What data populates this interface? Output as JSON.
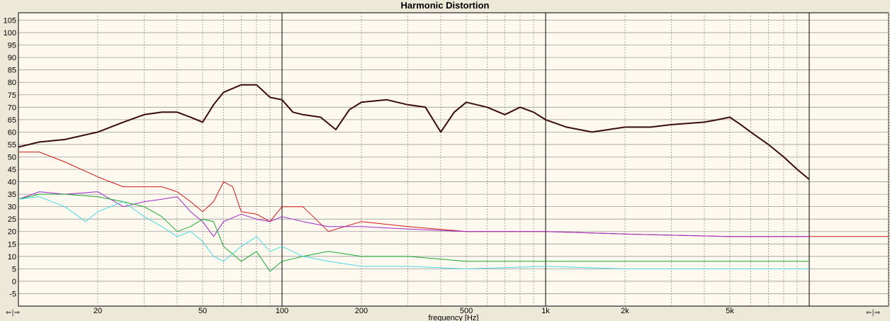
{
  "chart_data": {
    "type": "line",
    "title": "Harmonic Distortion",
    "xlabel": "frequency [Hz]",
    "ylabel": "",
    "x_scale": "log",
    "xlim": [
      10,
      20000
    ],
    "ylim": [
      -10,
      108
    ],
    "y_ticks": [
      105,
      100,
      95,
      90,
      85,
      80,
      75,
      70,
      65,
      60,
      55,
      50,
      45,
      40,
      35,
      30,
      25,
      20,
      15,
      10,
      5,
      0,
      -5
    ],
    "x_ticks": [
      {
        "value": 20,
        "label": "20"
      },
      {
        "value": 50,
        "label": "50"
      },
      {
        "value": 100,
        "label": "100"
      },
      {
        "value": 200,
        "label": "200"
      },
      {
        "value": 500,
        "label": "500"
      },
      {
        "value": 1000,
        "label": "1k"
      },
      {
        "value": 2000,
        "label": "2k"
      },
      {
        "value": 5000,
        "label": "5k"
      }
    ],
    "grid": true,
    "series": [
      {
        "color": "#3a0c0c",
        "width": 2,
        "x": [
          10,
          12,
          15,
          20,
          25,
          30,
          35,
          40,
          45,
          50,
          55,
          60,
          70,
          80,
          90,
          100,
          110,
          120,
          140,
          160,
          180,
          200,
          250,
          300,
          350,
          400,
          450,
          500,
          600,
          700,
          800,
          900,
          1000,
          1200,
          1500,
          2000,
          2500,
          3000,
          4000,
          4500,
          5000,
          5500,
          6000,
          7000,
          8000,
          9000,
          10000
        ],
        "y": [
          54,
          56,
          57,
          60,
          64,
          67,
          68,
          68,
          66,
          64,
          71,
          76,
          79,
          79,
          74,
          73,
          68,
          67,
          66,
          61,
          69,
          72,
          73,
          71,
          70,
          60,
          68,
          72,
          70,
          67,
          70,
          68,
          65,
          62,
          60,
          62,
          62,
          63,
          64,
          65,
          66,
          63,
          60,
          55,
          50,
          45,
          41
        ]
      },
      {
        "color": "#d01818",
        "width": 1,
        "x": [
          10,
          12,
          15,
          20,
          25,
          30,
          35,
          40,
          45,
          50,
          55,
          60,
          65,
          70,
          80,
          90,
          100,
          120,
          150,
          200,
          300,
          500,
          1000,
          2000,
          5000,
          10000,
          20000
        ],
        "y": [
          52,
          52,
          48,
          42,
          38,
          38,
          38,
          36,
          32,
          28,
          32,
          40,
          38,
          28,
          27,
          24,
          30,
          30,
          20,
          24,
          22,
          20,
          20,
          19,
          18,
          18,
          18
        ]
      },
      {
        "color": "#9e28c8",
        "width": 1,
        "x": [
          10,
          12,
          15,
          20,
          25,
          30,
          35,
          40,
          45,
          50,
          55,
          60,
          70,
          80,
          90,
          100,
          120,
          150,
          200,
          300,
          500,
          1000,
          2000,
          5000,
          10000
        ],
        "y": [
          33,
          36,
          35,
          36,
          30,
          32,
          33,
          34,
          28,
          24,
          18,
          24,
          27,
          25,
          24,
          26,
          24,
          22,
          22,
          21,
          20,
          20,
          19,
          18,
          18
        ]
      },
      {
        "color": "#18a830",
        "width": 1,
        "x": [
          10,
          12,
          15,
          20,
          25,
          30,
          35,
          40,
          45,
          50,
          55,
          60,
          70,
          80,
          90,
          100,
          120,
          150,
          200,
          300,
          500,
          1000,
          2000,
          5000,
          10000
        ],
        "y": [
          33,
          35,
          35,
          34,
          32,
          30,
          26,
          20,
          22,
          25,
          24,
          14,
          8,
          12,
          4,
          8,
          10,
          12,
          10,
          10,
          8,
          8,
          8,
          8,
          8
        ]
      },
      {
        "color": "#4ad8e0",
        "width": 1,
        "x": [
          10,
          12,
          15,
          18,
          20,
          25,
          30,
          35,
          40,
          45,
          50,
          55,
          60,
          70,
          80,
          90,
          100,
          120,
          150,
          200,
          300,
          500,
          1000,
          2000,
          5000,
          10000
        ],
        "y": [
          33,
          34,
          30,
          24,
          28,
          32,
          26,
          22,
          18,
          20,
          16,
          10,
          8,
          14,
          18,
          12,
          14,
          10,
          8,
          6,
          6,
          5,
          6,
          5,
          5,
          5
        ]
      }
    ]
  },
  "nav": {
    "left": "⇐|⇒",
    "right": "⇐|⇒"
  }
}
